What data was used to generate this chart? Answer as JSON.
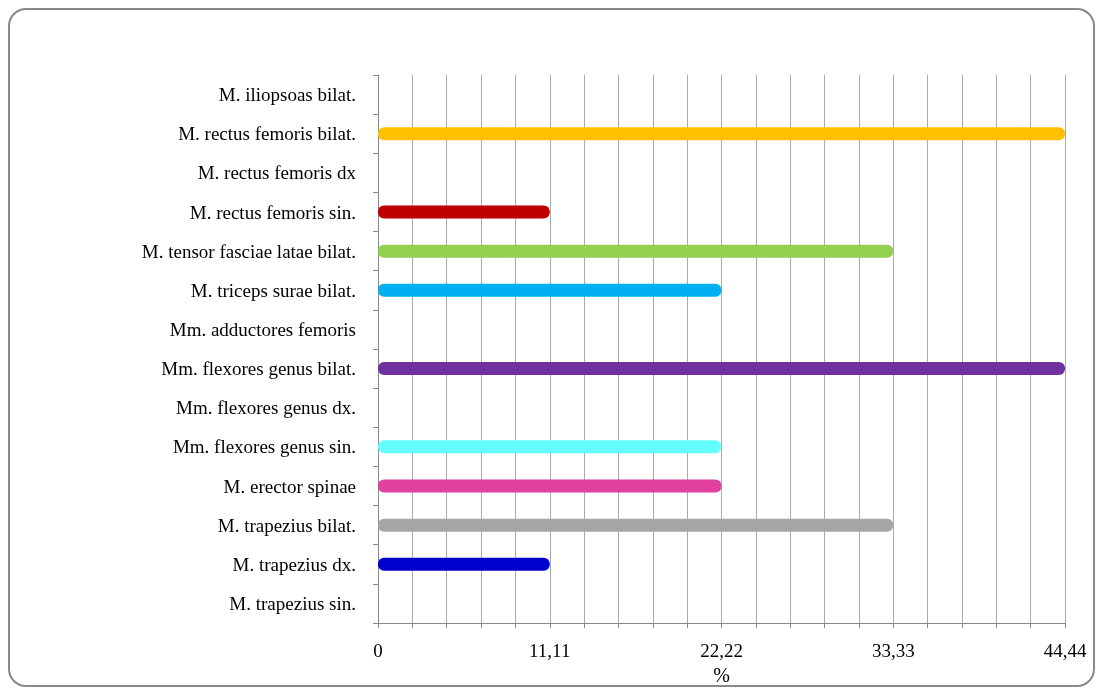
{
  "chart_data": {
    "type": "bar",
    "orientation": "horizontal",
    "xlabel": "%",
    "categories": [
      "M. iliopsoas bilat.",
      "M. rectus femoris bilat.",
      "M. rectus femoris dx",
      "M. rectus femoris sin.",
      "M. tensor fasciae latae bilat.",
      "M. triceps surae bilat.",
      "Mm. adductores femoris",
      "Mm. flexores genus bilat.",
      "Mm. flexores genus dx.",
      "Mm. flexores genus sin.",
      "M. erector spinae",
      "M. trapezius bilat.",
      "M. trapezius dx.",
      "M. trapezius sin."
    ],
    "values": [
      0,
      44.44,
      0,
      11.11,
      33.33,
      22.22,
      0,
      44.44,
      0,
      22.22,
      22.22,
      33.33,
      11.11,
      0
    ],
    "colors": [
      "#1f497d",
      "#ffc000",
      "#1f497d",
      "#c00000",
      "#92d050",
      "#00b0f0",
      "#1f497d",
      "#7030a0",
      "#1f497d",
      "#66ffff",
      "#e040a0",
      "#a6a6a6",
      "#0000cc",
      "#1f497d"
    ],
    "xlim": [
      0,
      44.44
    ],
    "xticks": [
      0,
      {
        "value": 2.222,
        "label": null
      },
      {
        "value": 4.444,
        "label": null
      },
      {
        "value": 6.666,
        "label": null
      },
      {
        "value": 8.888,
        "label": null
      },
      {
        "value": 11.11,
        "label": "11,11"
      },
      {
        "value": 13.332,
        "label": null
      },
      {
        "value": 15.554,
        "label": null
      },
      {
        "value": 17.776,
        "label": null
      },
      {
        "value": 19.998,
        "label": null
      },
      {
        "value": 22.22,
        "label": "22,22"
      },
      {
        "value": 24.442,
        "label": null
      },
      {
        "value": 26.664,
        "label": null
      },
      {
        "value": 28.886,
        "label": null
      },
      {
        "value": 31.108,
        "label": null
      },
      {
        "value": 33.33,
        "label": "33,33"
      },
      {
        "value": 35.552,
        "label": null
      },
      {
        "value": 37.774,
        "label": null
      },
      {
        "value": 39.996,
        "label": null
      },
      {
        "value": 42.218,
        "label": null
      },
      {
        "value": 44.44,
        "label": "44,44"
      }
    ],
    "grid": "x"
  }
}
